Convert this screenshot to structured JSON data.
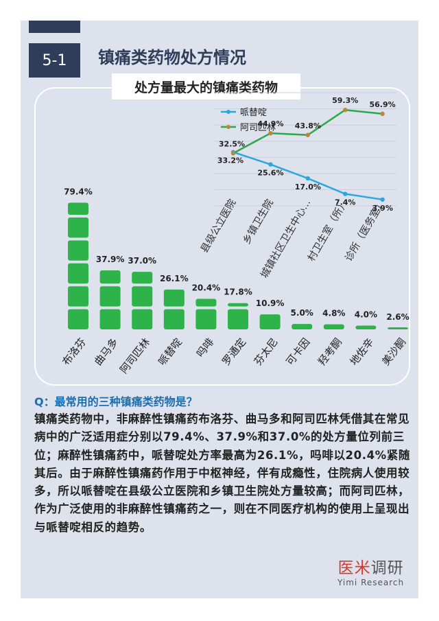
{
  "section": {
    "number": "5-1",
    "title": "镇痛类药物处方情况"
  },
  "chart_title": "处方量最大的镇痛类药物",
  "colors": {
    "bar": "#2db34a",
    "line_blue": "#2aa7df",
    "line_green": "#2aa84a",
    "dark": "#2e3d5a",
    "question": "#1a6fb0"
  },
  "chart_data": [
    {
      "type": "bar",
      "title": "处方量最大的镇痛类药物",
      "categories": [
        "布洛芬",
        "曲马多",
        "阿司匹林",
        "哌替啶",
        "吗啡",
        "罗通定",
        "芬太尼",
        "可卡因",
        "羟考酮",
        "地佐辛",
        "美沙酮"
      ],
      "values": [
        79.4,
        37.9,
        37.0,
        26.1,
        20.4,
        17.8,
        10.9,
        5.0,
        4.8,
        4.0,
        2.6
      ],
      "labels": [
        "79.4%",
        "37.9%",
        "37.0%",
        "26.1%",
        "20.4%",
        "17.8%",
        "10.9%",
        "5.0%",
        "4.8%",
        "4.0%",
        "2.6%"
      ],
      "ylim": [
        0,
        80
      ],
      "xlabel": "",
      "ylabel": ""
    },
    {
      "type": "line",
      "categories": [
        "县级公立医院",
        "乡镇卫生院",
        "城镇社区卫生中心...",
        "村卫生室（所）",
        "诊所（医务室）"
      ],
      "series": [
        {
          "name": "哌替啶",
          "values": [
            33.2,
            25.6,
            17.0,
            7.4,
            3.9
          ],
          "labels": [
            "33.2%",
            "25.6%",
            "17.0%",
            "7.4%",
            "3.9%"
          ]
        },
        {
          "name": "阿司匹林",
          "values": [
            32.5,
            44.9,
            43.8,
            59.3,
            56.9
          ],
          "labels": [
            "32.5%",
            "44.9%",
            "43.8%",
            "59.3%",
            "56.9%"
          ]
        }
      ],
      "ylim": [
        0,
        70
      ],
      "legend": "top-left"
    }
  ],
  "question": "Q：最常用的三种镇痛类药物是？",
  "answer": "镇痛类药物中，非麻醉性镇痛药布洛芬、曲马多和阿司匹林凭借其在常见病中的广泛适用症分别以79.4%、37.9%和37.0%的处方量位列前三位；麻醉性镇痛药中，哌替啶处方率最高为26.1%，吗啡以20.4%紧随其后。由于麻醉性镇痛药作用于中枢神经，伴有成瘾性，住院病人使用较多，所以哌替啶在县级公立医院和乡镇卫生院处方量较高；而阿司匹林，作为广泛使用的非麻醉性镇痛药之一，则在不同医疗机构的使用上呈现出与哌替啶相反的趋势。",
  "brand": {
    "cn_accent": "医米",
    "cn_rest": "调研",
    "en": "Yimi Research"
  }
}
